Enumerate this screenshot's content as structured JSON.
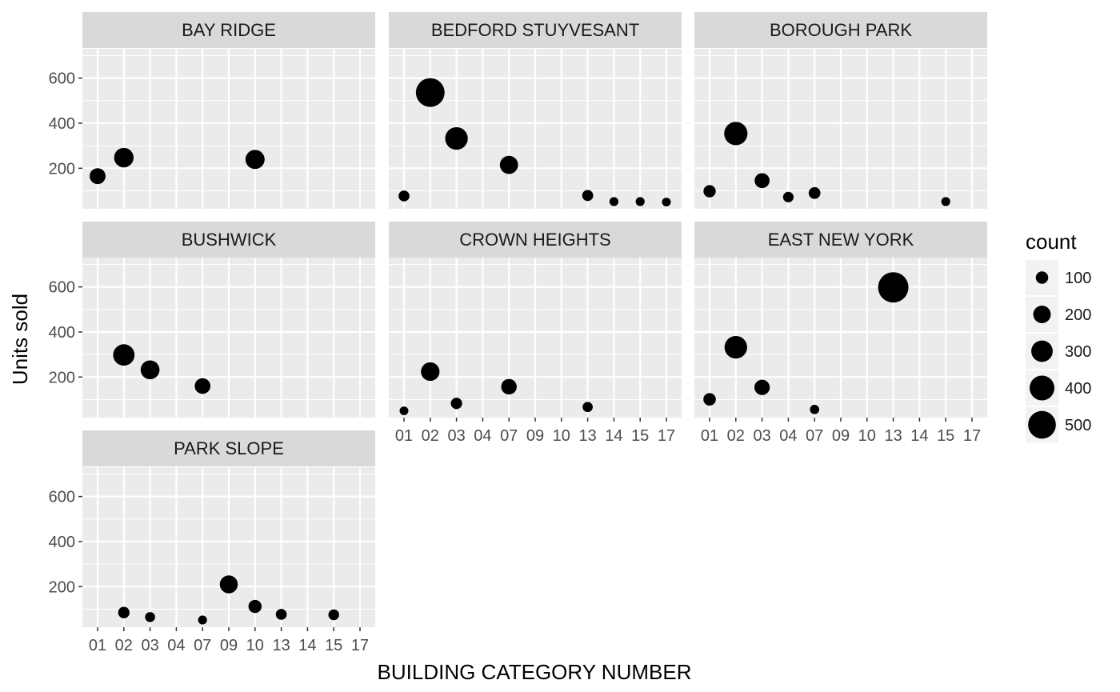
{
  "chart_data": {
    "type": "scatter",
    "xlabel": "BUILDING CATEGORY NUMBER",
    "ylabel": "Units sold",
    "x_categories": [
      "01",
      "02",
      "03",
      "04",
      "07",
      "09",
      "10",
      "13",
      "14",
      "15",
      "17"
    ],
    "y_ticks": [
      200,
      400,
      600
    ],
    "y_tick_labels": [
      "200",
      "400",
      "600"
    ],
    "ylim": [
      20,
      730
    ],
    "size_legend": {
      "title": "count",
      "values": [
        100,
        200,
        300,
        400,
        500
      ],
      "labels": [
        "100",
        "200",
        "300",
        "400",
        "500"
      ]
    },
    "colors": {
      "panel": "#ebebeb",
      "strip": "#d9d9d9",
      "grid": "#ffffff",
      "point": "#000000"
    },
    "facets": [
      {
        "name": "BAY RIDGE",
        "points": [
          {
            "x": "01",
            "y": 165,
            "count": 165
          },
          {
            "x": "02",
            "y": 247,
            "count": 247
          },
          {
            "x": "10",
            "y": 239,
            "count": 239
          }
        ]
      },
      {
        "name": "BEDFORD STUYVESANT",
        "points": [
          {
            "x": "01",
            "y": 77,
            "count": 77
          },
          {
            "x": "02",
            "y": 536,
            "count": 536
          },
          {
            "x": "03",
            "y": 332,
            "count": 332
          },
          {
            "x": "07",
            "y": 215,
            "count": 215
          },
          {
            "x": "13",
            "y": 79,
            "count": 79
          },
          {
            "x": "14",
            "y": 52,
            "count": 52
          },
          {
            "x": "15",
            "y": 52,
            "count": 52
          },
          {
            "x": "17",
            "y": 50,
            "count": 50
          }
        ]
      },
      {
        "name": "BOROUGH PARK",
        "points": [
          {
            "x": "01",
            "y": 98,
            "count": 98
          },
          {
            "x": "02",
            "y": 354,
            "count": 354
          },
          {
            "x": "03",
            "y": 145,
            "count": 145
          },
          {
            "x": "04",
            "y": 72,
            "count": 72
          },
          {
            "x": "07",
            "y": 90,
            "count": 90
          },
          {
            "x": "15",
            "y": 52,
            "count": 52
          }
        ]
      },
      {
        "name": "BUSHWICK",
        "points": [
          {
            "x": "02",
            "y": 298,
            "count": 298
          },
          {
            "x": "03",
            "y": 232,
            "count": 232
          },
          {
            "x": "07",
            "y": 160,
            "count": 160
          }
        ]
      },
      {
        "name": "CROWN HEIGHTS",
        "points": [
          {
            "x": "01",
            "y": 50,
            "count": 50
          },
          {
            "x": "02",
            "y": 224,
            "count": 224
          },
          {
            "x": "03",
            "y": 83,
            "count": 83
          },
          {
            "x": "07",
            "y": 157,
            "count": 157
          },
          {
            "x": "13",
            "y": 67,
            "count": 67
          }
        ]
      },
      {
        "name": "EAST NEW YORK",
        "points": [
          {
            "x": "01",
            "y": 101,
            "count": 101
          },
          {
            "x": "02",
            "y": 332,
            "count": 332
          },
          {
            "x": "03",
            "y": 154,
            "count": 154
          },
          {
            "x": "07",
            "y": 56,
            "count": 56
          },
          {
            "x": "13",
            "y": 598,
            "count": 598
          }
        ]
      },
      {
        "name": "PARK SLOPE",
        "points": [
          {
            "x": "02",
            "y": 85,
            "count": 85
          },
          {
            "x": "03",
            "y": 65,
            "count": 65
          },
          {
            "x": "07",
            "y": 52,
            "count": 52
          },
          {
            "x": "09",
            "y": 210,
            "count": 210
          },
          {
            "x": "10",
            "y": 112,
            "count": 112
          },
          {
            "x": "13",
            "y": 77,
            "count": 77
          },
          {
            "x": "15",
            "y": 75,
            "count": 75
          }
        ]
      }
    ]
  }
}
